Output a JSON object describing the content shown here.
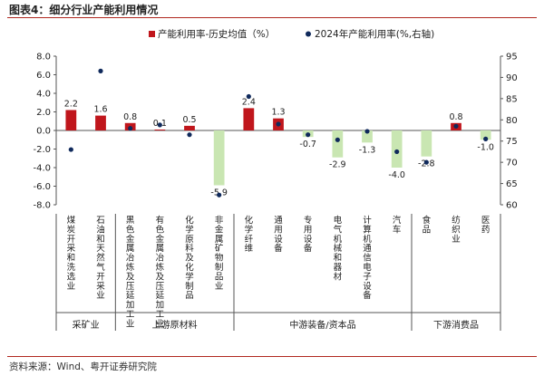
{
  "figure_title": "图表4：细分行业产能利用情况",
  "source": "资料来源：Wind、粤开证券研究院",
  "colors": {
    "bar_positive": "#c0161c",
    "bar_negative": "#c9e6b2",
    "dot": "#102a5c",
    "axis": "#555555",
    "rule": "#b0271f"
  },
  "chart_data": {
    "type": "bar",
    "title": "",
    "legend_position": "top",
    "categories": [
      "煤炭开采和洗选业",
      "石油和天然气开采业",
      "黑色金属冶炼及压延加工业",
      "有色金属冶炼及压延加工业",
      "化学原料及化学制品",
      "非金属矿物制品业",
      "化学纤维",
      "通用设备",
      "专用设备",
      "电气机械和器材",
      "计算机通信电子设备",
      "汽车",
      "食品",
      "纺织业",
      "医药"
    ],
    "groups": [
      {
        "label": "采矿业",
        "start": 0,
        "end": 1
      },
      {
        "label": "上游原材料",
        "start": 2,
        "end": 5
      },
      {
        "label": "中游装备/资本品",
        "start": 6,
        "end": 11
      },
      {
        "label": "下游消费品",
        "start": 12,
        "end": 14
      }
    ],
    "y_left": {
      "min": -8.0,
      "max": 8.0,
      "step": 2.0,
      "ticks": [
        "-8.0",
        "-6.0",
        "-4.0",
        "-2.0",
        "0.0",
        "2.0",
        "4.0",
        "6.0",
        "8.0"
      ]
    },
    "y_right": {
      "min": 60,
      "max": 95,
      "step": 5,
      "ticks": [
        "60",
        "65",
        "70",
        "75",
        "80",
        "85",
        "90",
        "95"
      ]
    },
    "grid": false,
    "series": [
      {
        "name": "产能利用率-历史均值（%）",
        "kind": "bar",
        "axis": "left",
        "values": [
          2.2,
          1.6,
          0.8,
          0.1,
          0.5,
          -5.9,
          2.4,
          1.3,
          -0.7,
          -2.9,
          -1.3,
          -4.0,
          -2.8,
          0.8,
          -1.0
        ],
        "labels": [
          "2.2",
          "1.6",
          "0.8",
          "0.1",
          "0.5",
          "-5.9",
          "2.4",
          "1.3",
          "-0.7",
          "-2.9",
          "-1.3",
          "-4.0",
          "-2.8",
          "0.8",
          "-1.0"
        ]
      },
      {
        "name": "2024年产能利用率(%,右轴)",
        "kind": "scatter",
        "axis": "right",
        "values": [
          73.0,
          91.5,
          78.0,
          78.8,
          76.5,
          62.3,
          85.5,
          79.0,
          76.5,
          75.3,
          77.3,
          72.5,
          70.0,
          78.5,
          75.5
        ]
      }
    ]
  }
}
